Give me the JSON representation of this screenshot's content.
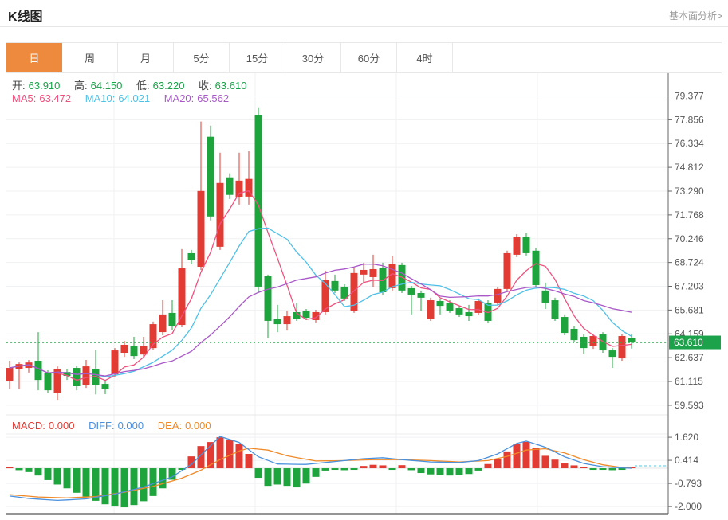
{
  "header": {
    "title": "K线图",
    "link_label": "基本面分析>"
  },
  "tabs": {
    "items": [
      "日",
      "周",
      "月",
      "5分",
      "15分",
      "30分",
      "60分",
      "4时"
    ],
    "selected_index": 0
  },
  "quote": {
    "open_label": "开:",
    "open": "63.910",
    "high_label": "高:",
    "high": "64.150",
    "low_label": "低:",
    "low": "63.220",
    "close_label": "收:",
    "close": "63.610"
  },
  "ma_readout": {
    "ma5_label": "MA5:",
    "ma5": "63.472",
    "ma10_label": "MA10:",
    "ma10": "64.021",
    "ma20_label": "MA20:",
    "ma20": "65.562"
  },
  "macd_readout": {
    "macd_label": "MACD:",
    "macd": "0.000",
    "diff_label": "DIFF:",
    "diff": "0.000",
    "dea_label": "DEA:",
    "dea": "0.000"
  },
  "price_axis": {
    "ticks": [
      "79.377",
      "77.856",
      "76.334",
      "74.812",
      "73.290",
      "71.768",
      "70.246",
      "68.724",
      "67.203",
      "65.681",
      "64.159",
      "62.637",
      "61.115",
      "59.593"
    ],
    "last_price_badge": "63.610"
  },
  "macd_axis": {
    "ticks": [
      "1.620",
      "0.414",
      "-0.793",
      "-2.000"
    ]
  },
  "colors": {
    "up": "#e23b33",
    "down": "#1ea43d",
    "ma5": "#f0507e",
    "ma10": "#4fc0e8",
    "ma20": "#a958c8",
    "diff_line": "#4a90dd",
    "dea_line": "#f08a28",
    "quote_value": "#1ba24a",
    "badge": "#1ba24a",
    "last_price_line": "#25b14b",
    "tab_selected": "#ee8a3e",
    "axis_text": "#555",
    "grid": "#f0f1f3",
    "axis_line": "#666"
  },
  "chart_data": {
    "type": "candlestick_with_macd",
    "title": "K线图",
    "period_selected": "日",
    "price_axis_range": [
      59.593,
      79.377
    ],
    "macd_axis_range": [
      -2.0,
      1.62
    ],
    "last_close": 63.61,
    "ohlc_note": "candles as [open, high, low, close]; red=up green=down",
    "candles": [
      [
        61.16,
        62.44,
        60.65,
        61.98
      ],
      [
        61.93,
        62.33,
        60.65,
        62.23
      ],
      [
        61.98,
        62.49,
        61.68,
        62.33
      ],
      [
        62.44,
        64.27,
        60.55,
        61.21
      ],
      [
        61.67,
        61.83,
        60.35,
        60.55
      ],
      [
        60.4,
        62.08,
        59.94,
        61.93
      ],
      [
        61.72,
        61.93,
        61.21,
        61.47
      ],
      [
        61.98,
        62.13,
        60.55,
        60.81
      ],
      [
        60.91,
        62.49,
        60.7,
        62.08
      ],
      [
        61.93,
        63.1,
        60.29,
        60.91
      ],
      [
        60.96,
        61.21,
        60.3,
        60.65
      ],
      [
        61.57,
        63.25,
        61.42,
        63.1
      ],
      [
        62.95,
        63.71,
        62.69,
        63.46
      ],
      [
        63.36,
        63.97,
        62.54,
        62.74
      ],
      [
        62.84,
        63.97,
        62.64,
        63.36
      ],
      [
        63.25,
        64.94,
        63.1,
        64.78
      ],
      [
        64.27,
        66.31,
        64.07,
        65.4
      ],
      [
        65.5,
        66.31,
        64.43,
        64.63
      ],
      [
        64.73,
        69.58,
        64.58,
        68.35
      ],
      [
        69.32,
        69.53,
        68.61,
        68.86
      ],
      [
        68.45,
        77.74,
        68.25,
        73.3
      ],
      [
        76.77,
        77.48,
        71.42,
        71.67
      ],
      [
        69.73,
        75.75,
        69.53,
        73.81
      ],
      [
        74.17,
        74.43,
        72.79,
        73.05
      ],
      [
        72.89,
        75.75,
        72.43,
        73.96
      ],
      [
        72.94,
        75.85,
        72.43,
        74.07
      ],
      [
        78.14,
        78.65,
        66.77,
        67.18
      ],
      [
        67.84,
        67.95,
        63.87,
        64.99
      ],
      [
        65.14,
        66.01,
        64.27,
        64.78
      ],
      [
        64.78,
        65.65,
        64.37,
        65.29
      ],
      [
        65.55,
        66.16,
        64.99,
        65.14
      ],
      [
        65.6,
        65.75,
        65.04,
        65.19
      ],
      [
        65.04,
        65.7,
        64.89,
        65.55
      ],
      [
        65.55,
        68.2,
        65.4,
        67.59
      ],
      [
        67.54,
        67.95,
        66.77,
        66.93
      ],
      [
        67.18,
        67.33,
        66.26,
        66.42
      ],
      [
        65.65,
        68.45,
        65.5,
        68.05
      ],
      [
        67.95,
        68.71,
        67.44,
        68.25
      ],
      [
        67.79,
        69.22,
        67.18,
        68.3
      ],
      [
        68.35,
        68.71,
        66.67,
        66.82
      ],
      [
        67.08,
        69.12,
        66.93,
        68.61
      ],
      [
        68.56,
        68.71,
        66.77,
        66.93
      ],
      [
        67.08,
        67.23,
        65.4,
        66.67
      ],
      [
        66.77,
        66.93,
        65.65,
        66.47
      ],
      [
        65.14,
        66.47,
        64.99,
        66.31
      ],
      [
        66.26,
        66.42,
        65.4,
        65.95
      ],
      [
        66.16,
        66.31,
        65.5,
        65.65
      ],
      [
        65.8,
        65.95,
        65.24,
        65.4
      ],
      [
        65.55,
        66.01,
        64.99,
        65.29
      ],
      [
        65.5,
        66.42,
        65.35,
        66.26
      ],
      [
        66.16,
        66.31,
        64.84,
        64.99
      ],
      [
        66.16,
        67.18,
        66.01,
        67.03
      ],
      [
        67.03,
        69.48,
        66.88,
        69.32
      ],
      [
        69.22,
        70.54,
        69.07,
        70.34
      ],
      [
        70.34,
        70.64,
        69.17,
        69.32
      ],
      [
        69.48,
        69.63,
        67.13,
        67.28
      ],
      [
        66.93,
        67.44,
        65.75,
        66.16
      ],
      [
        66.31,
        66.47,
        64.99,
        65.14
      ],
      [
        65.24,
        65.4,
        64.07,
        64.22
      ],
      [
        64.48,
        64.63,
        63.61,
        63.76
      ],
      [
        63.97,
        64.12,
        62.85,
        63.25
      ],
      [
        63.36,
        64.17,
        63.2,
        64.02
      ],
      [
        64.12,
        64.27,
        62.95,
        63.1
      ],
      [
        63.1,
        63.25,
        61.98,
        62.69
      ],
      [
        62.59,
        64.12,
        62.44,
        64.02
      ],
      [
        63.91,
        64.15,
        63.22,
        63.61
      ]
    ],
    "ma_windows": {
      "ma5": 5,
      "ma10": 10,
      "ma20": 20
    },
    "macd_hist": [
      0.05,
      -0.1,
      -0.2,
      -0.38,
      -0.62,
      -0.85,
      -1.05,
      -1.28,
      -1.48,
      -1.7,
      -1.88,
      -2.0,
      -2.04,
      -1.92,
      -1.72,
      -1.45,
      -1.05,
      -0.6,
      -0.06,
      0.62,
      1.16,
      1.37,
      1.62,
      1.5,
      1.29,
      0.75,
      -0.5,
      -0.92,
      -0.85,
      -0.92,
      -1.0,
      -0.8,
      -0.45,
      -0.12,
      -0.08,
      -0.1,
      -0.06,
      0.12,
      0.18,
      0.15,
      -0.04,
      0.16,
      -0.1,
      -0.25,
      -0.32,
      -0.36,
      -0.38,
      -0.35,
      -0.3,
      -0.12,
      0.22,
      0.48,
      0.88,
      1.28,
      1.38,
      1.05,
      0.65,
      0.45,
      0.25,
      0.15,
      0.06,
      -0.02,
      -0.04,
      -0.1,
      -0.08,
      0.0
    ],
    "diff_points": [
      [
        0,
        -1.45
      ],
      [
        2,
        -1.58
      ],
      [
        5,
        -1.68
      ],
      [
        8,
        -1.6
      ],
      [
        11,
        -1.35
      ],
      [
        14,
        -0.98
      ],
      [
        17,
        -0.45
      ],
      [
        19,
        0.2
      ],
      [
        20,
        0.7
      ],
      [
        22,
        1.66
      ],
      [
        24,
        1.35
      ],
      [
        26,
        0.6
      ],
      [
        28,
        0.22
      ],
      [
        31,
        0.2
      ],
      [
        34,
        0.35
      ],
      [
        37,
        0.5
      ],
      [
        39,
        0.55
      ],
      [
        41,
        0.45
      ],
      [
        44,
        0.33
      ],
      [
        47,
        0.3
      ],
      [
        49,
        0.4
      ],
      [
        51,
        0.75
      ],
      [
        53,
        1.3
      ],
      [
        54,
        1.42
      ],
      [
        56,
        1.1
      ],
      [
        58,
        0.6
      ],
      [
        60,
        0.25
      ],
      [
        62,
        0.08
      ],
      [
        64,
        0.02
      ],
      [
        65,
        0.0
      ]
    ],
    "dea_points": [
      [
        0,
        -1.38
      ],
      [
        3,
        -1.5
      ],
      [
        6,
        -1.55
      ],
      [
        9,
        -1.48
      ],
      [
        12,
        -1.25
      ],
      [
        15,
        -0.95
      ],
      [
        18,
        -0.52
      ],
      [
        20,
        -0.1
      ],
      [
        22,
        0.45
      ],
      [
        24,
        0.9
      ],
      [
        25,
        1.05
      ],
      [
        27,
        0.95
      ],
      [
        29,
        0.65
      ],
      [
        32,
        0.38
      ],
      [
        35,
        0.4
      ],
      [
        38,
        0.45
      ],
      [
        41,
        0.45
      ],
      [
        44,
        0.4
      ],
      [
        47,
        0.33
      ],
      [
        50,
        0.4
      ],
      [
        52,
        0.62
      ],
      [
        54,
        0.95
      ],
      [
        56,
        1.02
      ],
      [
        58,
        0.8
      ],
      [
        60,
        0.45
      ],
      [
        62,
        0.18
      ],
      [
        64,
        0.04
      ],
      [
        65,
        0.0
      ]
    ]
  }
}
